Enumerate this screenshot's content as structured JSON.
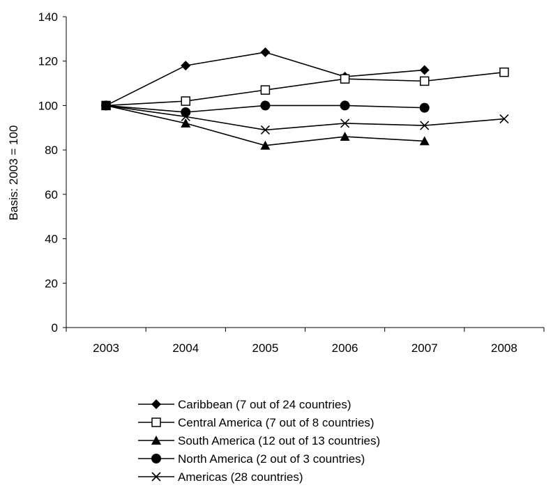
{
  "chart_data": {
    "type": "line",
    "title": "",
    "xlabel": "",
    "ylabel": "Basis: 2003 = 100",
    "x": [
      "2003",
      "2004",
      "2005",
      "2006",
      "2007",
      "2008"
    ],
    "ylim": [
      0,
      140
    ],
    "yticks": [
      0,
      20,
      40,
      60,
      80,
      100,
      120,
      140
    ],
    "grid": false,
    "legend": "bottom",
    "series": [
      {
        "name": "Caribbean (7 out of 24 countries)",
        "marker": "diamond-filled",
        "values": [
          100,
          118,
          124,
          113,
          116,
          null
        ]
      },
      {
        "name": "Central America (7 out of 8 countries)",
        "marker": "square-open",
        "values": [
          100,
          102,
          107,
          112,
          111,
          115
        ]
      },
      {
        "name": "South America (12 out of 13 countries)",
        "marker": "triangle-filled",
        "values": [
          100,
          92,
          82,
          86,
          84,
          null
        ]
      },
      {
        "name": "North America (2 out of 3 countries)",
        "marker": "circle-filled",
        "values": [
          100,
          97,
          100,
          100,
          99,
          null
        ]
      },
      {
        "name": "Americas (28 countries)",
        "marker": "x",
        "values": [
          100,
          95,
          89,
          92,
          91,
          94
        ]
      }
    ]
  }
}
